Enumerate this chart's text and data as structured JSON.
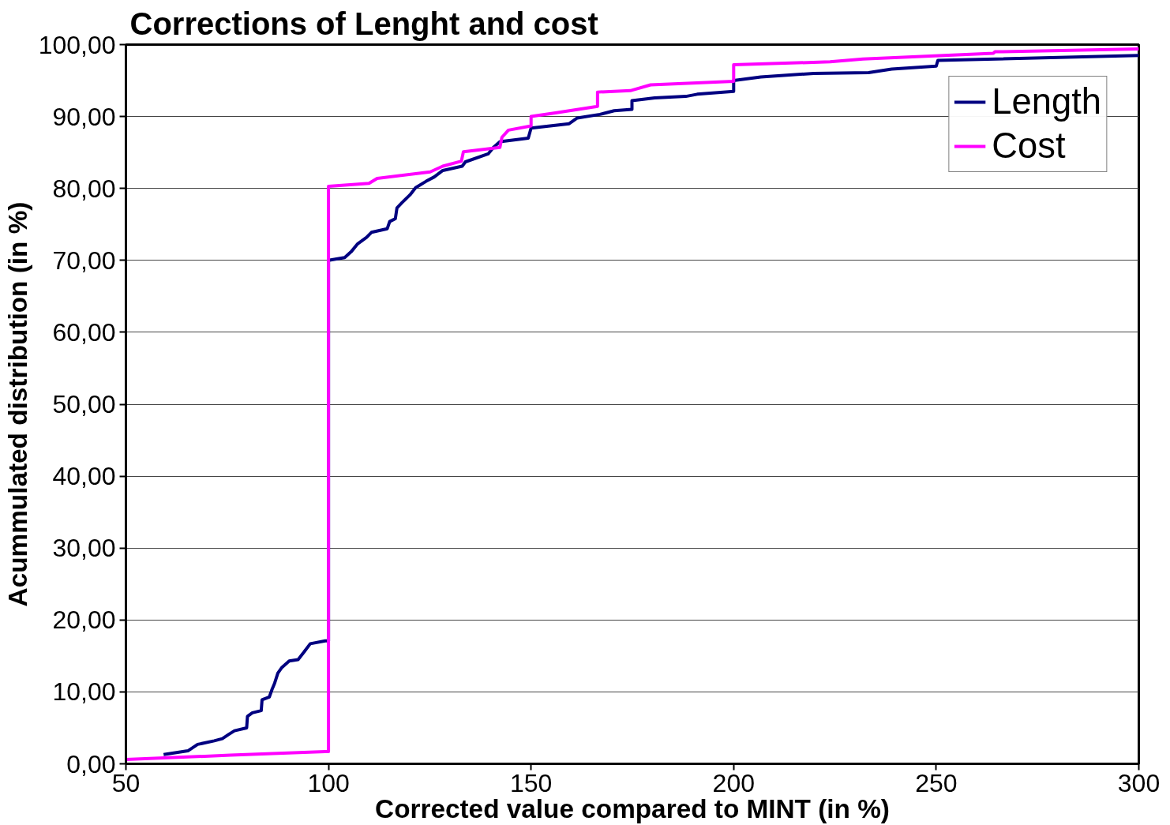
{
  "chart_data": {
    "type": "line",
    "title": "Corrections of Lenght and cost",
    "xlabel": "Corrected value compared to MINT (in %)",
    "ylabel": "Acummulated distribution (in %)",
    "xlim": [
      50,
      300
    ],
    "xticks": [
      50,
      100,
      150,
      200,
      250,
      300
    ],
    "ylim": [
      0,
      100
    ],
    "yticks": [
      {
        "value": 0,
        "label": "0,00"
      },
      {
        "value": 10,
        "label": "10,00"
      },
      {
        "value": 20,
        "label": "20,00"
      },
      {
        "value": 30,
        "label": "30,00"
      },
      {
        "value": 40,
        "label": "40,00"
      },
      {
        "value": 50,
        "label": "50,00"
      },
      {
        "value": 60,
        "label": "60,00"
      },
      {
        "value": 70,
        "label": "70,00"
      },
      {
        "value": 80,
        "label": "80,00"
      },
      {
        "value": 90,
        "label": "90,00"
      },
      {
        "value": 100,
        "label": "100,00"
      }
    ],
    "grid": "y",
    "legend": "top right",
    "line_style": "solid",
    "series": [
      {
        "name": "Length",
        "color": "#000080",
        "x": [
          59.3,
          65.3,
          67.7,
          71.8,
          73.8,
          75.4,
          76.8,
          79.8,
          80.0,
          81.2,
          83.4,
          83.6,
          85.4,
          86.1,
          86.7,
          87.5,
          88.5,
          90.3,
          92.5,
          93.9,
          95.5,
          99.2,
          100,
          100,
          104,
          105.6,
          107.2,
          109.4,
          110.6,
          114.5,
          115.1,
          116.5,
          116.9,
          118.1,
          120.1,
          121.5,
          124.1,
          126.1,
          128.2,
          133.0,
          133.8,
          139.4,
          140.7,
          142.3,
          149.3,
          150,
          159.4,
          161.4,
          167.0,
          170.5,
          174.9,
          174.9,
          180.5,
          188.2,
          191,
          200,
          200,
          206.7,
          219.8,
          233.3,
          239,
          250,
          250.4,
          300
        ],
        "values": [
          1.3,
          1.8,
          2.7,
          3.2,
          3.5,
          4.1,
          4.6,
          5.0,
          6.6,
          7.1,
          7.4,
          8.9,
          9.3,
          10.4,
          11.2,
          12.6,
          13.4,
          14.3,
          14.5,
          15.5,
          16.7,
          17.1,
          17.1,
          70.0,
          70.4,
          71.2,
          72.3,
          73.2,
          73.9,
          74.4,
          75.4,
          75.8,
          77.3,
          78.0,
          79.1,
          80.1,
          81.0,
          81.6,
          82.5,
          83.1,
          83.7,
          84.8,
          85.7,
          86.5,
          87.0,
          88.4,
          89.0,
          89.8,
          90.3,
          90.8,
          91.0,
          92.2,
          92.6,
          92.8,
          93.1,
          93.5,
          95.0,
          95.5,
          96.0,
          96.1,
          96.6,
          97.0,
          97.8,
          98.5
        ]
      },
      {
        "name": "Cost",
        "color": "#ff00ff",
        "x": [
          50,
          75.8,
          99.2,
          100,
          100,
          110,
          112,
          125.1,
          128.2,
          132.8,
          133.3,
          142.3,
          142.8,
          144.4,
          150,
          150,
          156,
          166.4,
          166.4,
          174.5,
          179.5,
          200,
          200,
          223.8,
          231.9,
          264.1,
          264.5,
          300
        ],
        "values": [
          0.6,
          1.2,
          1.7,
          1.7,
          80.3,
          80.7,
          81.4,
          82.3,
          83.1,
          83.8,
          85.1,
          85.7,
          87.1,
          88.1,
          88.7,
          90.0,
          90.5,
          91.4,
          93.4,
          93.6,
          94.4,
          94.9,
          97.2,
          97.6,
          98.0,
          98.8,
          99.0,
          99.4
        ]
      }
    ]
  }
}
